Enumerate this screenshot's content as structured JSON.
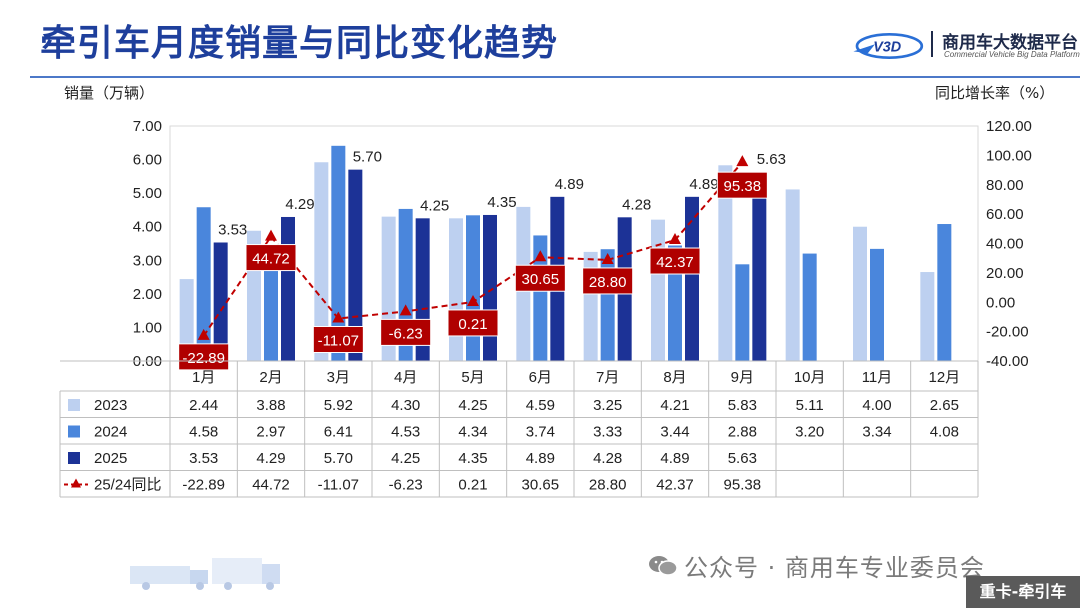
{
  "header": {
    "title": "牵引车月度销量与同比变化趋势",
    "logo_name": "商用车大数据平台",
    "logo_sub": "Commercial Vehicle Big Data Platform",
    "logo_mark": "V3D",
    "brand_color": "#1e3f9c"
  },
  "footer": {
    "watermark": "公众号 · 商用车专业委员会",
    "tag": "重卡-牵引车"
  },
  "chart_data": {
    "type": "bar",
    "ylabel": "销量（万辆）",
    "y2label": "同比增长率（%）",
    "ylim": [
      0,
      7
    ],
    "y2lim": [
      -40,
      120
    ],
    "yticks": [
      "0.00",
      "1.00",
      "2.00",
      "3.00",
      "4.00",
      "5.00",
      "6.00",
      "7.00"
    ],
    "y2ticks": [
      "-40.00",
      "-20.00",
      "0.00",
      "20.00",
      "40.00",
      "60.00",
      "80.00",
      "100.00",
      "120.00"
    ],
    "categories": [
      "1月",
      "2月",
      "3月",
      "4月",
      "5月",
      "6月",
      "7月",
      "8月",
      "9月",
      "10月",
      "11月",
      "12月"
    ],
    "series": [
      {
        "name": "2023",
        "type": "bar",
        "color": "#bdd0f0",
        "values": [
          2.44,
          3.88,
          5.92,
          4.3,
          4.25,
          4.59,
          3.25,
          4.21,
          5.83,
          5.11,
          4.0,
          2.65
        ]
      },
      {
        "name": "2024",
        "type": "bar",
        "color": "#4a86dc",
        "values": [
          4.58,
          2.97,
          6.41,
          4.53,
          4.34,
          3.74,
          3.33,
          3.44,
          2.88,
          3.2,
          3.34,
          4.08
        ]
      },
      {
        "name": "2025",
        "type": "bar",
        "color": "#1c3296",
        "values": [
          3.53,
          4.29,
          5.7,
          4.25,
          4.35,
          4.89,
          4.28,
          4.89,
          5.63,
          null,
          null,
          null
        ]
      },
      {
        "name": "25/24同比",
        "type": "line",
        "color": "#c00000",
        "axis": "right",
        "values": [
          -22.89,
          44.72,
          -11.07,
          -6.23,
          0.21,
          30.65,
          28.8,
          42.37,
          95.38,
          null,
          null,
          null
        ]
      }
    ],
    "table_rows": [
      {
        "label": "2023",
        "cells": [
          "2.44",
          "3.88",
          "5.92",
          "4.30",
          "4.25",
          "4.59",
          "3.25",
          "4.21",
          "5.83",
          "5.11",
          "4.00",
          "2.65"
        ]
      },
      {
        "label": "2024",
        "cells": [
          "4.58",
          "2.97",
          "6.41",
          "4.53",
          "4.34",
          "3.74",
          "3.33",
          "3.44",
          "2.88",
          "3.20",
          "3.34",
          "4.08"
        ]
      },
      {
        "label": "2025",
        "cells": [
          "3.53",
          "4.29",
          "5.70",
          "4.25",
          "4.35",
          "4.89",
          "4.28",
          "4.89",
          "5.63",
          "",
          "",
          ""
        ]
      },
      {
        "label": "25/24同比",
        "cells": [
          "-22.89",
          "44.72",
          "-11.07",
          "-6.23",
          "0.21",
          "30.65",
          "28.80",
          "42.37",
          "95.38",
          "",
          "",
          ""
        ]
      }
    ],
    "bar_labels_2025": [
      "3.53",
      "4.29",
      "5.70",
      "4.25",
      "4.35",
      "4.89",
      "4.28",
      "4.89",
      "5.63"
    ],
    "line_labels": [
      "-22.89",
      "44.72",
      "-11.07",
      "-6.23",
      "0.21",
      "30.65",
      "28.80",
      "42.37",
      "95.38"
    ]
  }
}
